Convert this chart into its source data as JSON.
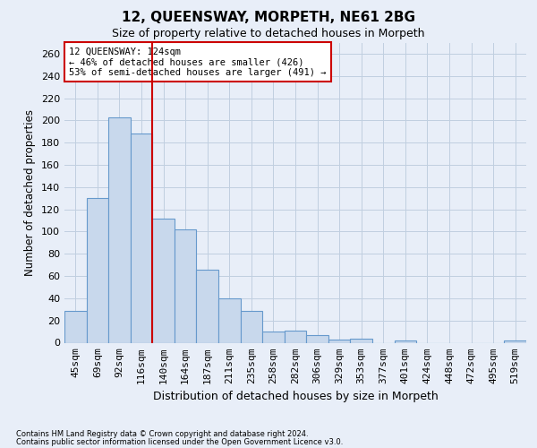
{
  "title": "12, QUEENSWAY, MORPETH, NE61 2BG",
  "subtitle": "Size of property relative to detached houses in Morpeth",
  "xlabel": "Distribution of detached houses by size in Morpeth",
  "ylabel": "Number of detached properties",
  "bins": [
    "45sqm",
    "69sqm",
    "92sqm",
    "116sqm",
    "140sqm",
    "164sqm",
    "187sqm",
    "211sqm",
    "235sqm",
    "258sqm",
    "282sqm",
    "306sqm",
    "329sqm",
    "353sqm",
    "377sqm",
    "401sqm",
    "424sqm",
    "448sqm",
    "472sqm",
    "495sqm",
    "519sqm"
  ],
  "bar_values": [
    29,
    130,
    203,
    188,
    112,
    102,
    66,
    40,
    29,
    10,
    11,
    7,
    3,
    4,
    0,
    2,
    0,
    0,
    0,
    0,
    2
  ],
  "bar_color": "#c8d8ec",
  "bar_edge_color": "#6699cc",
  "vline_pos": 3.5,
  "vline_color": "#cc0000",
  "annotation_text": "12 QUEENSWAY: 124sqm\n← 46% of detached houses are smaller (426)\n53% of semi-detached houses are larger (491) →",
  "annotation_box_color": "white",
  "annotation_box_edge_color": "#cc0000",
  "ylim": [
    0,
    270
  ],
  "yticks": [
    0,
    20,
    40,
    60,
    80,
    100,
    120,
    140,
    160,
    180,
    200,
    220,
    240,
    260
  ],
  "grid_color": "#c0cfe0",
  "background_color": "#e8eef8",
  "footnote1": "Contains HM Land Registry data © Crown copyright and database right 2024.",
  "footnote2": "Contains public sector information licensed under the Open Government Licence v3.0."
}
